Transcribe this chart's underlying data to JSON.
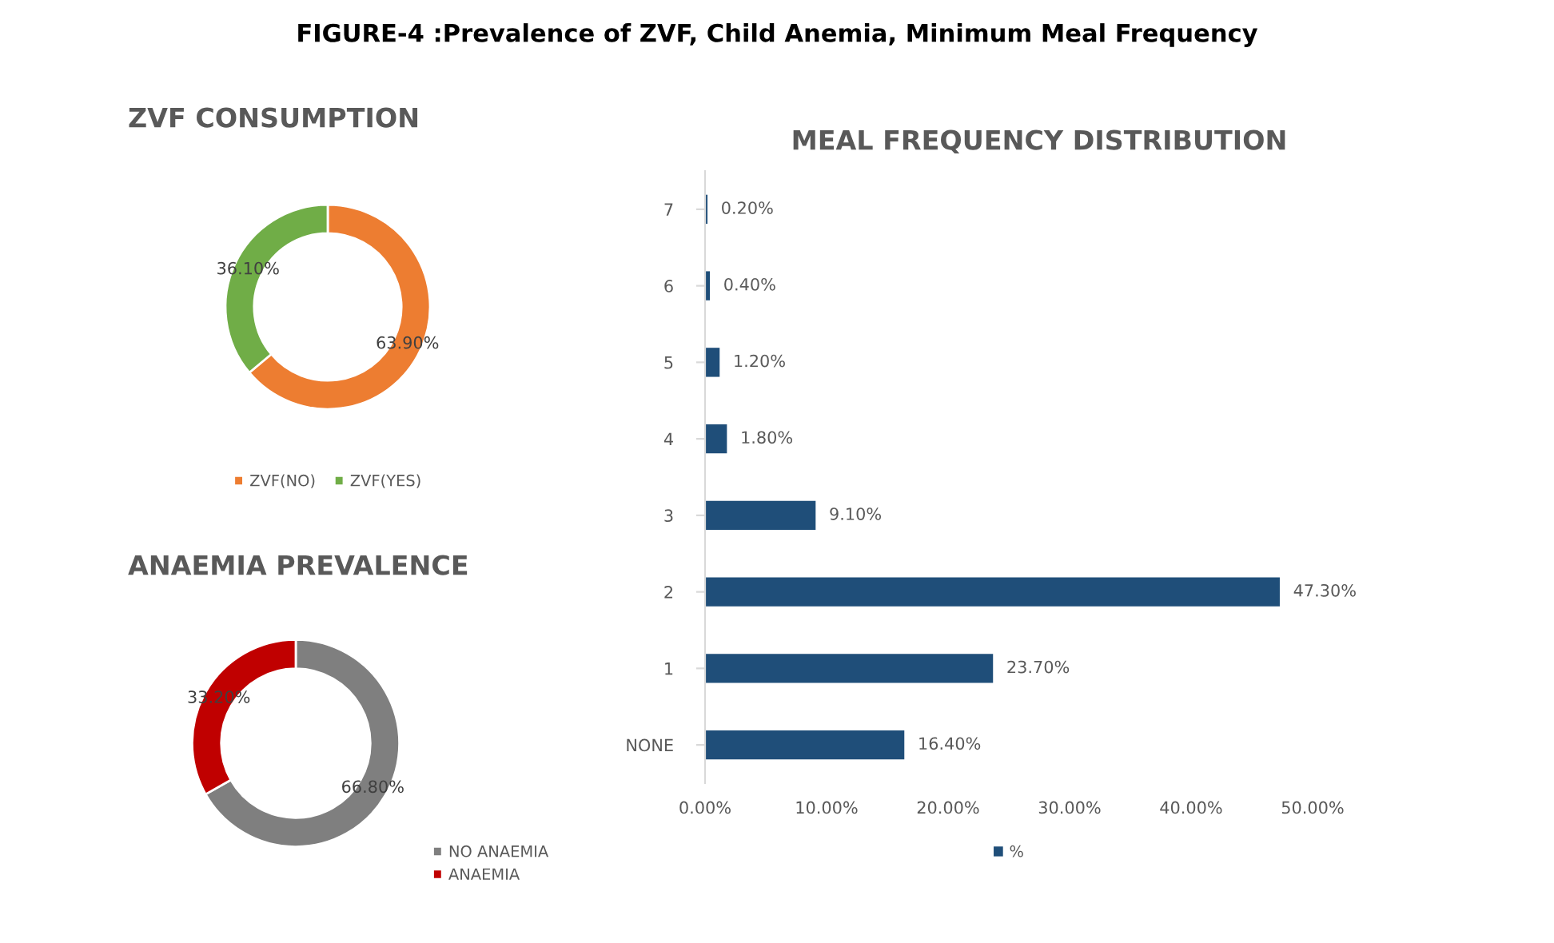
{
  "chart_data": [
    {
      "type": "donut",
      "title": "ZVF CONSUMPTION",
      "annotations": [
        "FIGURE-4 :Prevalence of ZVF, Child Anemia, Minimum Meal Frequency"
      ],
      "categories": [
        "ZVF(NO)",
        "ZVF(YES)"
      ],
      "values": [
        63.9,
        36.1
      ],
      "colors": [
        "#ed7d31",
        "#70ad47"
      ],
      "value_labels": [
        "63.90%",
        "36.10%"
      ],
      "legend": "bottom"
    },
    {
      "type": "donut",
      "title": "ANAEMIA PREVALENCE",
      "categories": [
        "NO ANAEMIA",
        "ANAEMIA"
      ],
      "values": [
        66.8,
        33.2
      ],
      "colors": [
        "#7f7f7f",
        "#c00000"
      ],
      "value_labels": [
        "66.80%",
        "33.20%"
      ],
      "legend": "bottom right"
    },
    {
      "type": "bar",
      "orientation": "horizontal",
      "title": "MEAL FREQUENCY DISTRIBUTION",
      "categories": [
        "7",
        "6",
        "5",
        "4",
        "3",
        "2",
        "1",
        "NONE"
      ],
      "series": [
        {
          "name": "%",
          "color": "#1f4e79",
          "values": [
            0.2,
            0.4,
            1.2,
            1.8,
            9.1,
            47.3,
            23.7,
            16.4
          ],
          "value_labels": [
            "0.20%",
            "0.40%",
            "1.20%",
            "1.80%",
            "9.10%",
            "47.30%",
            "23.70%",
            "16.40%"
          ]
        }
      ],
      "xlim": [
        0,
        50
      ],
      "xticks": [
        {
          "value": 0,
          "label": "0.00%"
        },
        {
          "value": 10,
          "label": "10.00%"
        },
        {
          "value": 20,
          "label": "20.00%"
        },
        {
          "value": 30,
          "label": "30.00%"
        },
        {
          "value": 40,
          "label": "40.00%"
        },
        {
          "value": 50,
          "label": "50.00%"
        }
      ],
      "grid": false,
      "legend": "bottom"
    }
  ]
}
